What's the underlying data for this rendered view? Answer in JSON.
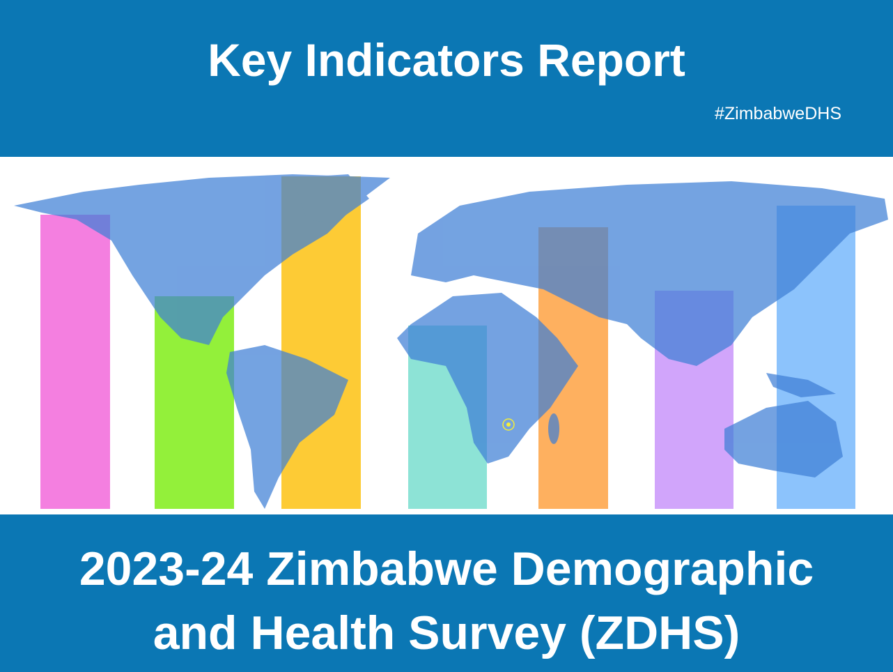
{
  "header": {
    "title": "Key Indicators Report",
    "hashtag": "#ZimbabweDHS"
  },
  "footer": {
    "lines": [
      "2023-24 Zimbabwe Demographic",
      "and Health Survey (ZDHS)"
    ]
  }
}
